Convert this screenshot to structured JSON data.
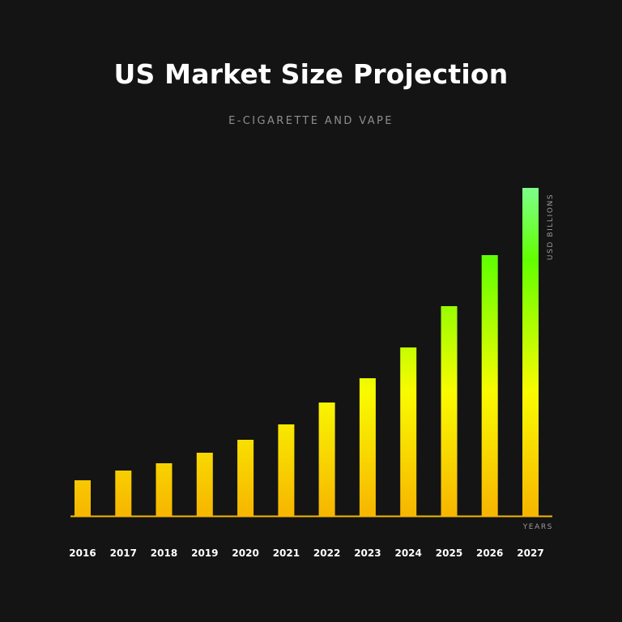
{
  "chart_data": {
    "type": "bar",
    "title": "US Market Size Projection",
    "subtitle": "E-CIGARETTE AND VAPE",
    "xlabel": "YEARS",
    "ylabel": "USD BILLIONS",
    "categories": [
      "2016",
      "2017",
      "2018",
      "2019",
      "2020",
      "2021",
      "2022",
      "2023",
      "2024",
      "2025",
      "2026",
      "2027"
    ],
    "values": [
      44,
      56,
      65,
      78,
      94,
      113,
      140,
      170,
      208,
      259,
      322,
      405
    ],
    "ylim": [
      0,
      405
    ],
    "grid": false,
    "legend": "none",
    "colors": {
      "background": "#141414",
      "axis": "#f5b800",
      "bar_low": "#f7b500",
      "bar_mid": "#f9fb00",
      "bar_high": "#62ff00",
      "bar_top": "#7dff8a",
      "tick_label": "#ffffff",
      "axis_title": "#9a9a9a"
    }
  }
}
